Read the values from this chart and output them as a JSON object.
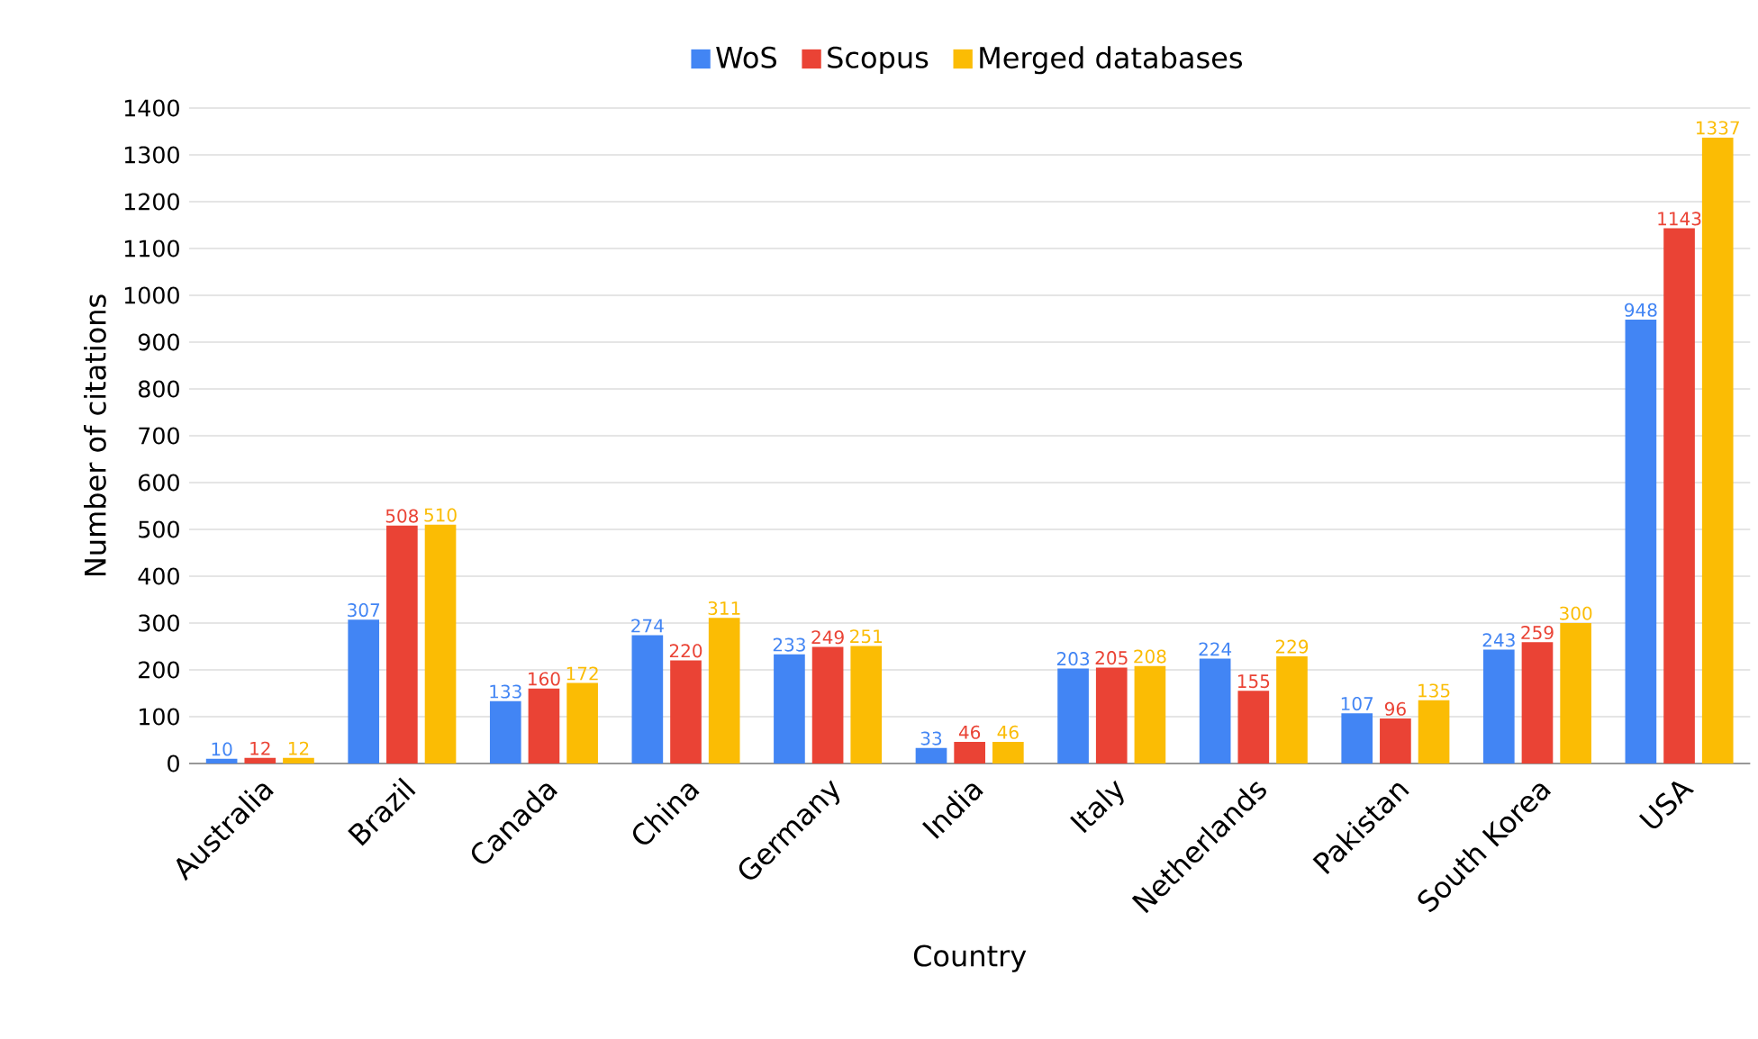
{
  "chart_data": {
    "type": "bar",
    "xlabel": "Country",
    "ylabel": "Number of citations",
    "categories": [
      "Australia",
      "Brazil",
      "Canada",
      "China",
      "Germany",
      "India",
      "Italy",
      "Netherlands",
      "Pakistan",
      "South Korea",
      "USA"
    ],
    "series": [
      {
        "name": "WoS",
        "color": "#4285f4",
        "values": [
          10,
          307,
          133,
          274,
          233,
          33,
          203,
          224,
          107,
          243,
          948
        ]
      },
      {
        "name": "Scopus",
        "color": "#ea4335",
        "values": [
          12,
          508,
          160,
          220,
          249,
          46,
          205,
          155,
          96,
          259,
          1143
        ]
      },
      {
        "name": "Merged databases",
        "color": "#fbbc04",
        "values": [
          12,
          510,
          172,
          311,
          251,
          46,
          208,
          229,
          135,
          300,
          1337
        ]
      }
    ],
    "ylim": [
      0,
      1400
    ],
    "yticks": [
      0,
      100,
      200,
      300,
      400,
      500,
      600,
      700,
      800,
      900,
      1000,
      1100,
      1200,
      1300,
      1400
    ],
    "grid": "y",
    "legend": "top",
    "data_labels": true
  }
}
